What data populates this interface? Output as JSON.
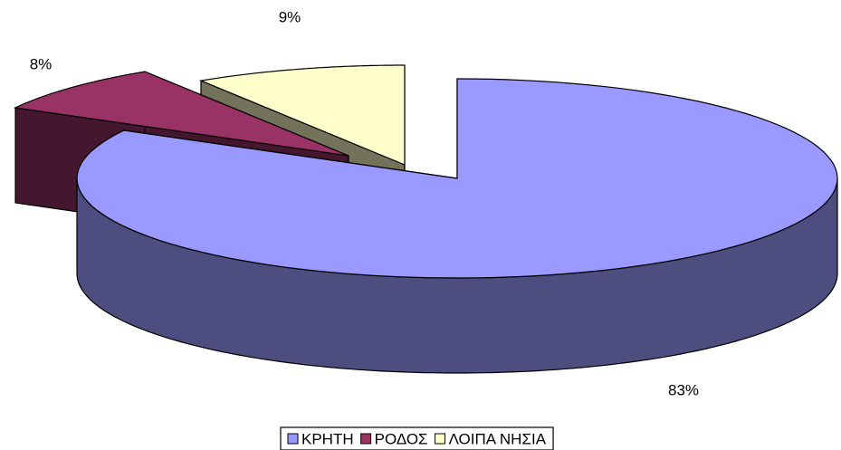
{
  "chart_data": {
    "type": "pie",
    "categories": [
      "ΚΡΗΤΗ",
      "ΡΟΔΟΣ",
      "ΛΟΙΠΑ ΝΗΣΙΑ"
    ],
    "values": [
      83,
      8,
      9
    ],
    "value_labels": [
      "83%",
      "8%",
      "9%"
    ],
    "colors": [
      "#9999ff",
      "#993366",
      "#ffffcc"
    ],
    "legend": "bottom"
  }
}
